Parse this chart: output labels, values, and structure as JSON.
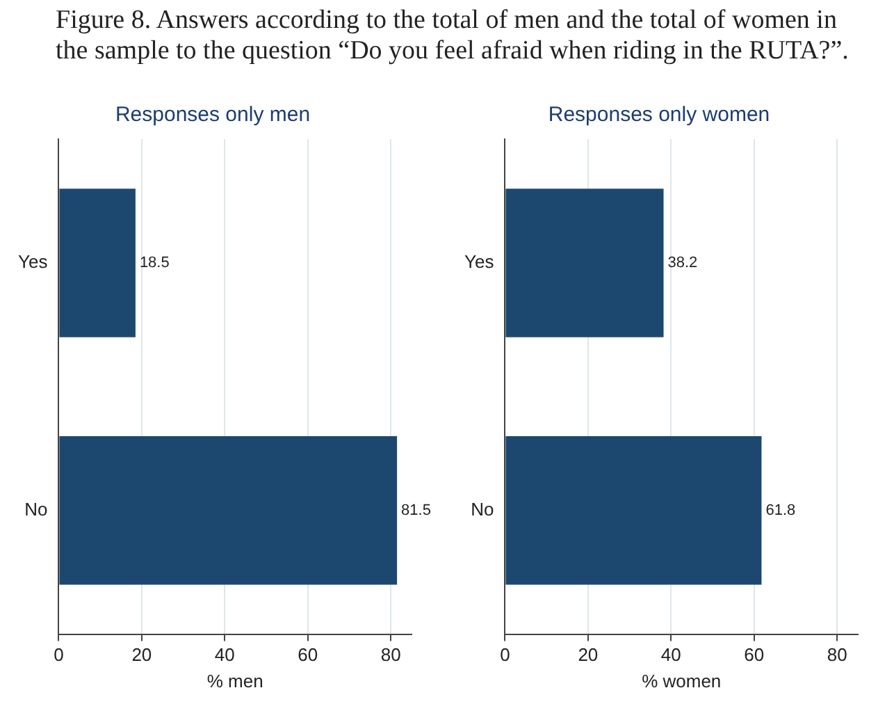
{
  "chart_data": [
    {
      "type": "bar",
      "orientation": "horizontal",
      "title": "Responses only men",
      "xlabel": "% men",
      "annotations": [
        "Figure 8. Answers according to the total of men and the total of women in the sample to the question “Do you feel afraid when riding in the RUTA?”."
      ],
      "categories": [
        "Yes",
        "No"
      ],
      "values": [
        18.5,
        81.5
      ],
      "color": "#1c4870",
      "xlim": [
        0,
        85
      ],
      "xticks": [
        0,
        20,
        40,
        60,
        80
      ],
      "grid": "x",
      "data_labels": true
    },
    {
      "type": "bar",
      "orientation": "horizontal",
      "title": "Responses only women",
      "xlabel": "% women",
      "categories": [
        "Yes",
        "No"
      ],
      "values": [
        38.2,
        61.8
      ],
      "color": "#1c4870",
      "xlim": [
        0,
        85
      ],
      "xticks": [
        0,
        20,
        40,
        60,
        80
      ],
      "grid": "x",
      "data_labels": true
    }
  ]
}
